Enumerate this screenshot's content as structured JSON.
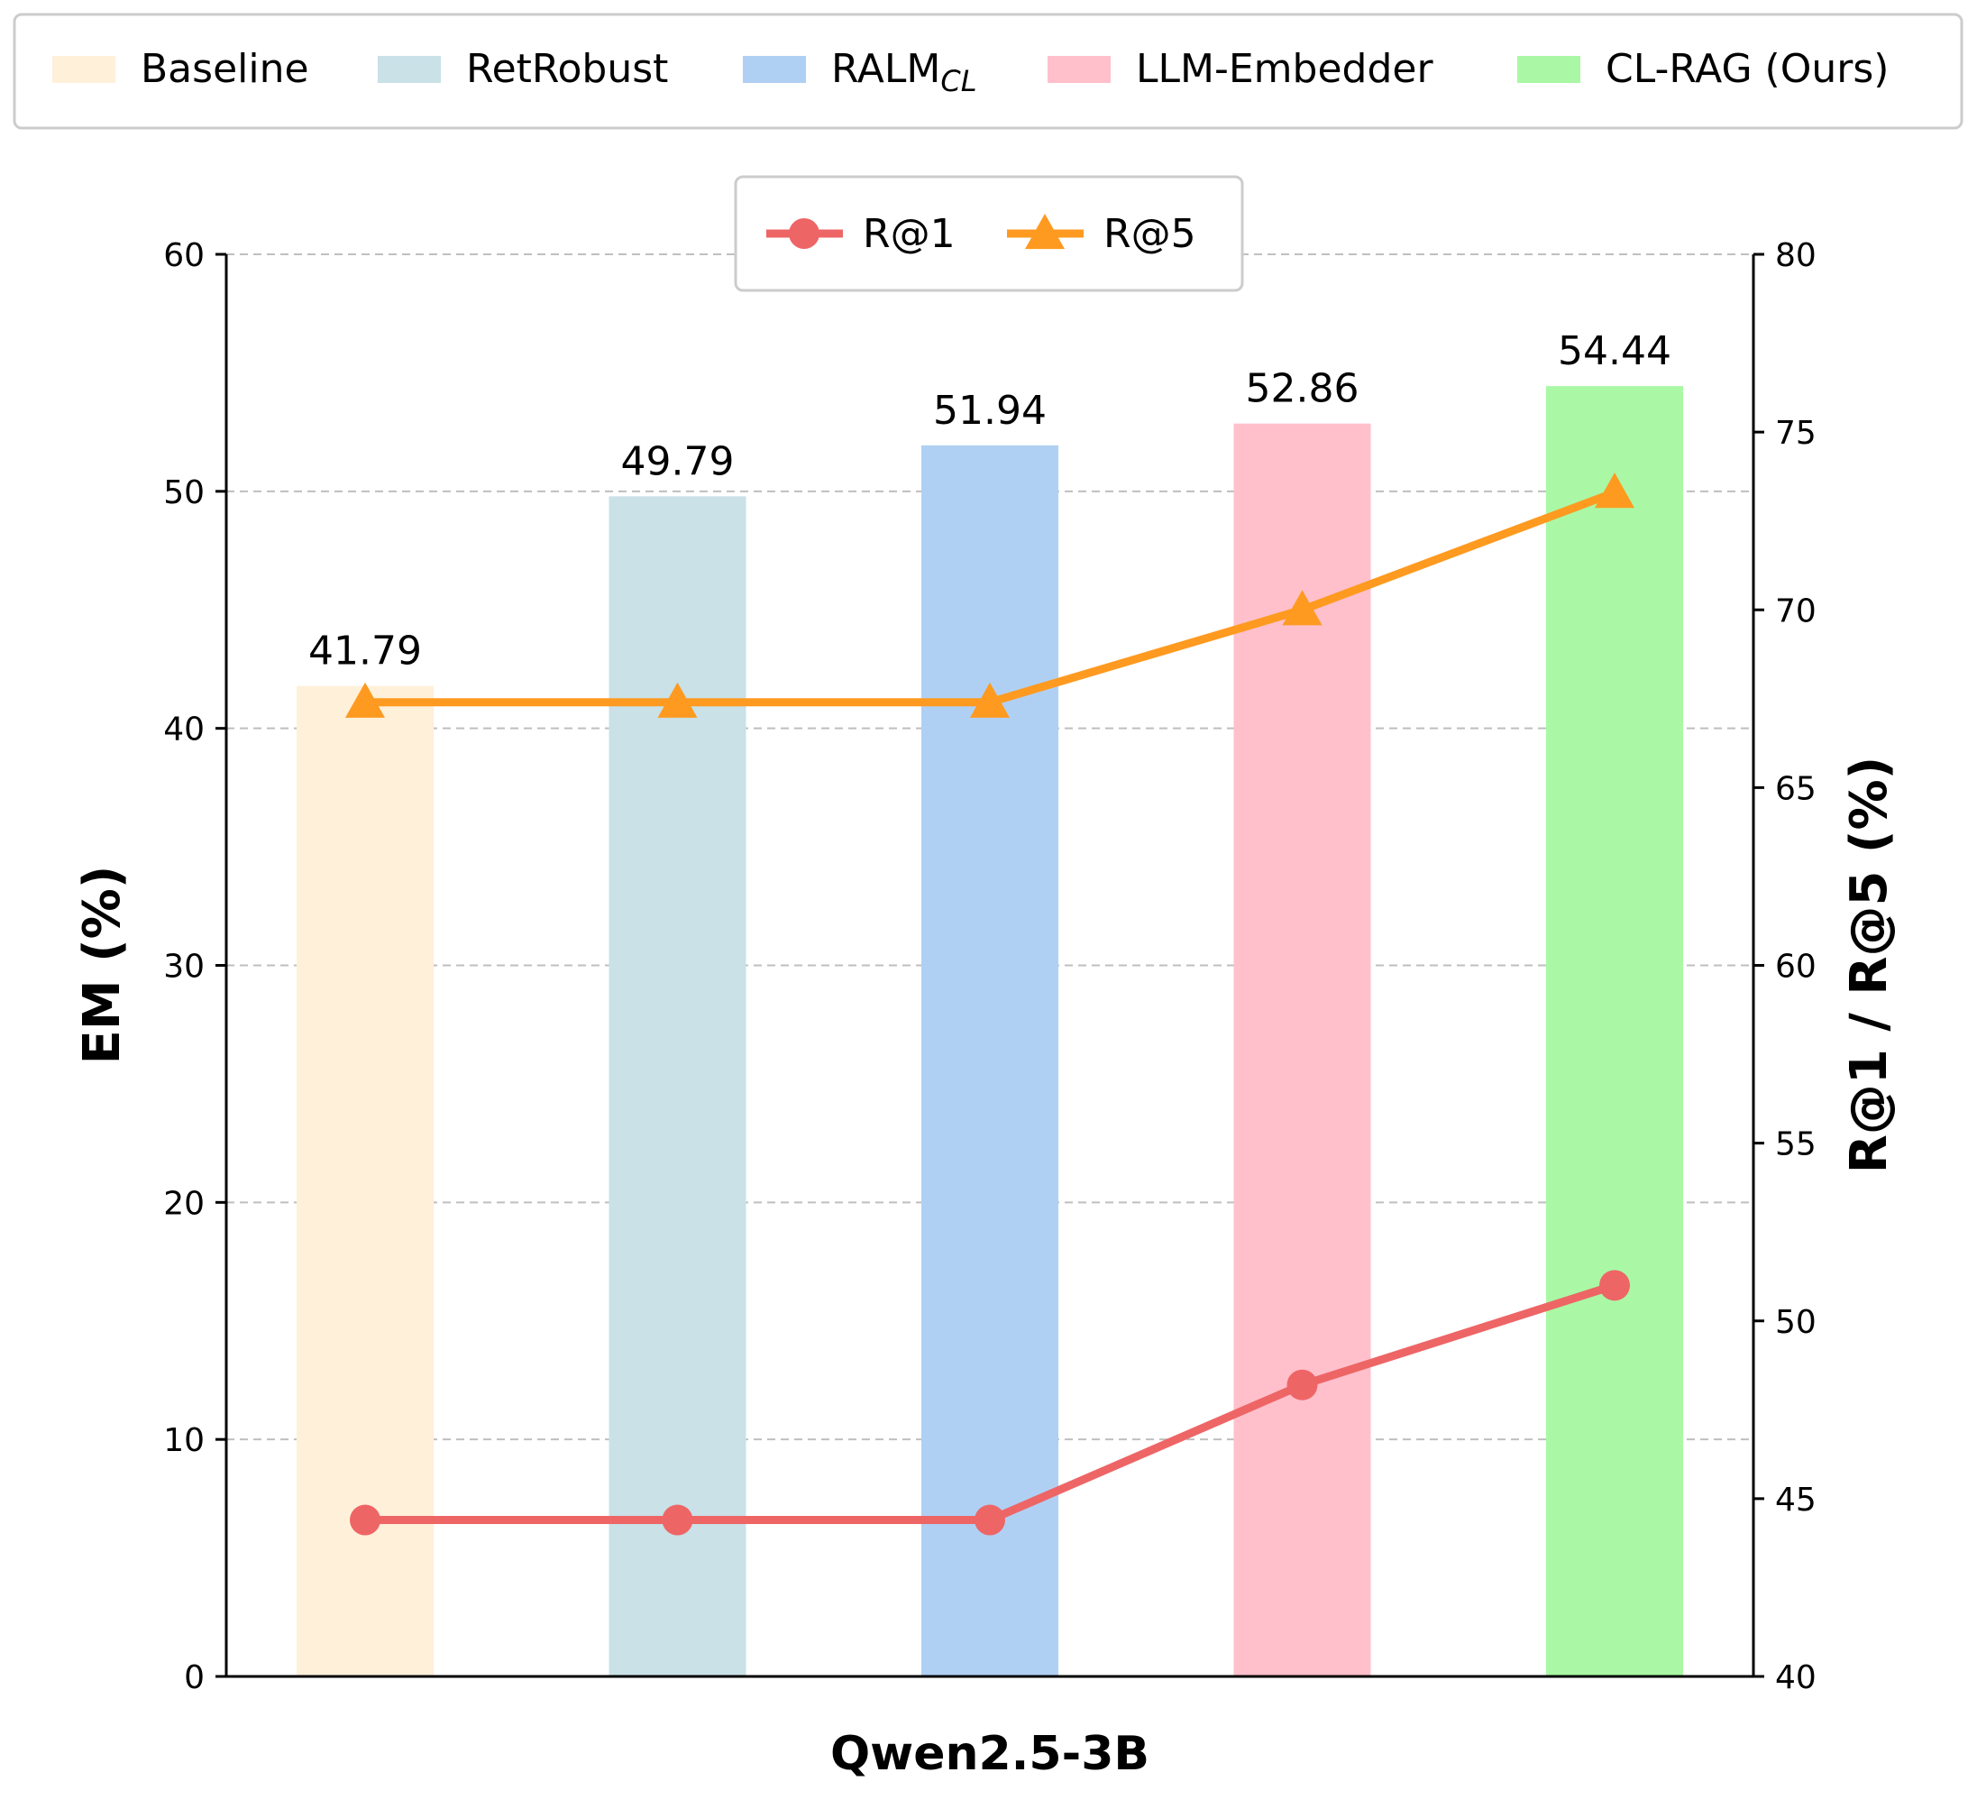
{
  "chart_data": {
    "type": "bar",
    "categories": [
      "Baseline",
      "RetRobust",
      "RALM_CL",
      "LLM-Embedder",
      "CL-RAG (Ours)"
    ],
    "bar_legend": [
      {
        "label": "Baseline",
        "sub": "",
        "color": "#FFF0D9"
      },
      {
        "label": "RetRobust",
        "sub": "",
        "color": "#C9E1E7"
      },
      {
        "label": "RALM",
        "sub": "CL",
        "color": "#B0D0F3"
      },
      {
        "label": "LLM-Embedder",
        "sub": "",
        "color": "#FFC0CB"
      },
      {
        "label": "CL-RAG (Ours)",
        "sub": "",
        "color": "#AAF8A5"
      }
    ],
    "em_values": [
      41.79,
      49.79,
      51.94,
      52.86,
      54.44
    ],
    "value_labels": [
      "41.79",
      "49.79",
      "51.94",
      "52.86",
      "54.44"
    ],
    "series": [
      {
        "name": "R@1",
        "axis": "right",
        "marker": "circle",
        "color": "#EE6566",
        "values": [
          44.4,
          44.4,
          44.4,
          48.2,
          51.0
        ]
      },
      {
        "name": "R@5",
        "axis": "right",
        "marker": "triangle",
        "color": "#FE9A20",
        "values": [
          67.4,
          67.4,
          67.4,
          70.0,
          73.3
        ]
      }
    ],
    "xlabel": "Qwen2.5-3B",
    "ylabel": "EM (%)",
    "y2label": "R@1 / R@5 (%)",
    "ylim": [
      0,
      60
    ],
    "y2lim": [
      40,
      80
    ],
    "yticks": [
      "0",
      "10",
      "20",
      "30",
      "40",
      "50",
      "60"
    ],
    "y2ticks": [
      "40",
      "45",
      "50",
      "55",
      "60",
      "65",
      "70",
      "75",
      "80"
    ],
    "grid": true,
    "legend_bars_position": "top",
    "legend_lines_position": "upper-center"
  }
}
